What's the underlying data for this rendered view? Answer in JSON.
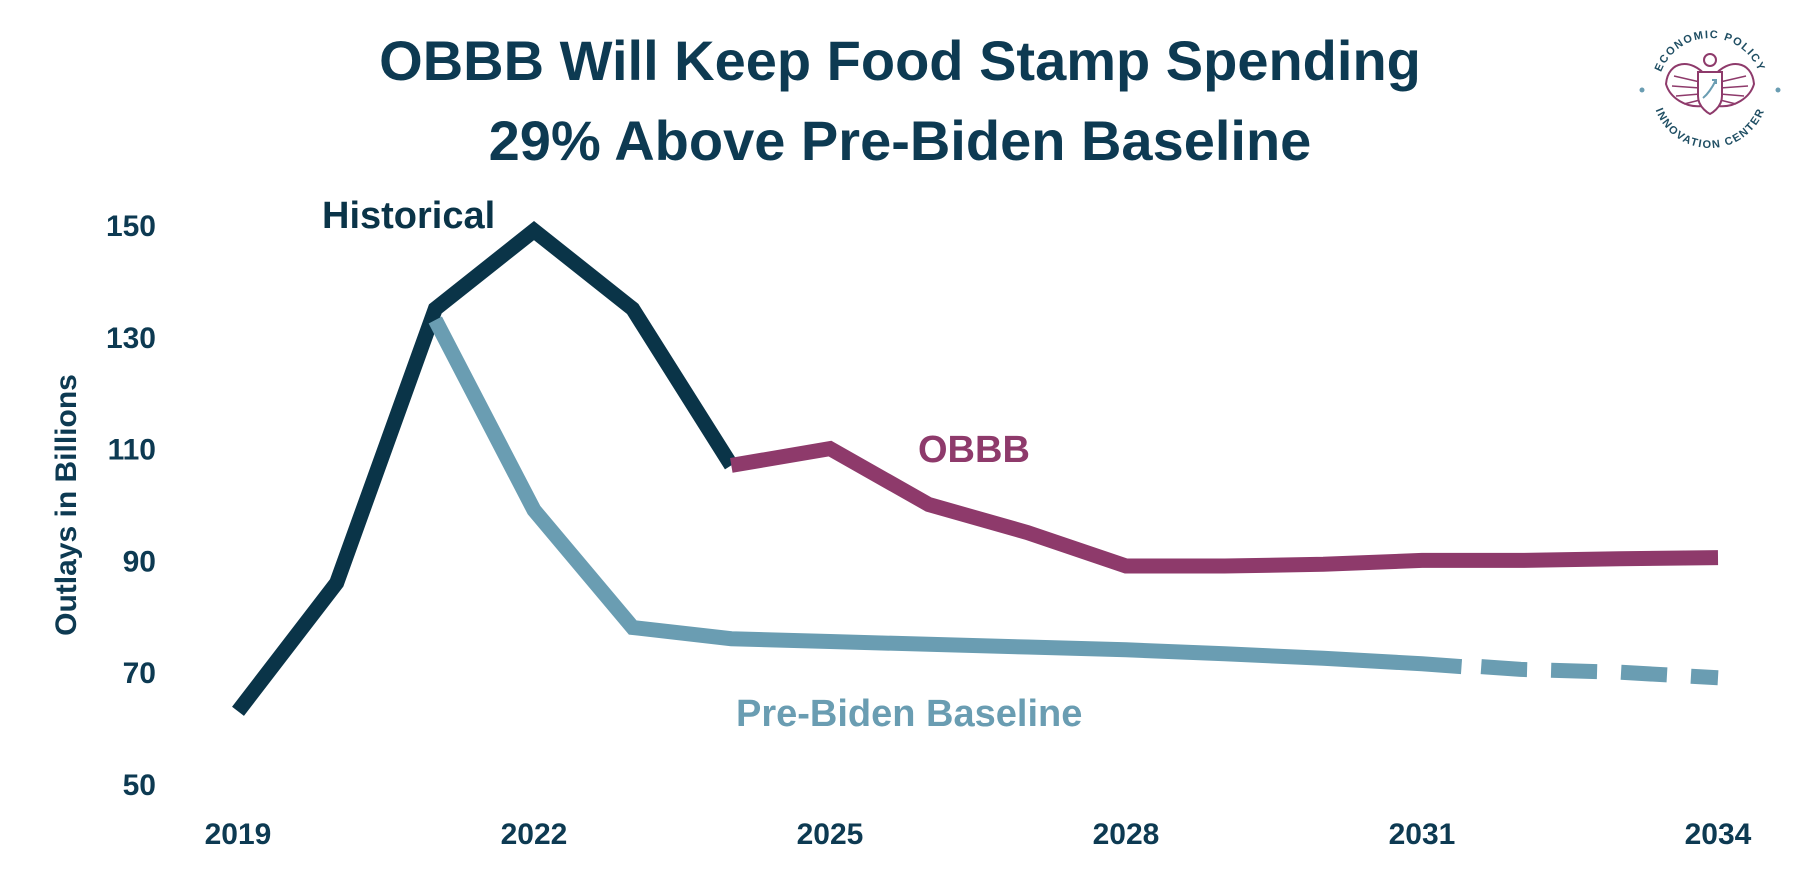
{
  "title": {
    "line1": "OBBB Will Keep Food Stamp Spending",
    "line2": "29% Above Pre-Biden Baseline"
  },
  "logo": {
    "icon": "eagle-seal-icon",
    "top_text": "ECONOMIC POLICY",
    "bottom_text": "INNOVATION CENTER",
    "color": "#8e3a6b"
  },
  "chart_data": {
    "type": "line",
    "title": "OBBB Will Keep Food Stamp Spending 29% Above Pre-Biden Baseline",
    "xlabel": "",
    "ylabel": "Outlays in Billions",
    "xlim": [
      2019,
      2034
    ],
    "ylim": [
      50,
      150
    ],
    "x_ticks": [
      2019,
      2022,
      2025,
      2028,
      2031,
      2034
    ],
    "y_ticks": [
      50,
      70,
      90,
      110,
      130,
      150
    ],
    "grid": false,
    "legend": "inline labels",
    "series": [
      {
        "name": "Historical",
        "color": "#0a3448",
        "style": "solid",
        "x": [
          2019,
          2020,
          2021,
          2022,
          2023,
          2024
        ],
        "y": [
          63,
          86,
          135,
          149,
          135,
          107
        ]
      },
      {
        "name": "OBBB",
        "color": "#8e3a6b",
        "style": "solid",
        "x": [
          2024,
          2025,
          2026,
          2027,
          2028,
          2029,
          2030,
          2031,
          2032,
          2033,
          2034
        ],
        "y": [
          107,
          110,
          100,
          95,
          89,
          89,
          89.3,
          90,
          90,
          90.3,
          90.5
        ]
      },
      {
        "name": "Pre-Biden Baseline",
        "color": "#6a9db2",
        "style": "solid",
        "x": [
          2021,
          2022,
          2023,
          2024,
          2025,
          2026,
          2027,
          2028,
          2029,
          2030,
          2031,
          2031.4
        ],
        "y": [
          133,
          99,
          78,
          76,
          75.5,
          75,
          74.5,
          74,
          73.3,
          72.5,
          71.5,
          71
        ]
      },
      {
        "name": "Pre-Biden Baseline projection",
        "color": "#6a9db2",
        "style": "dashed",
        "x": [
          2031.6,
          2032,
          2033,
          2034
        ],
        "y": [
          71,
          70.5,
          70,
          69
        ]
      }
    ]
  }
}
